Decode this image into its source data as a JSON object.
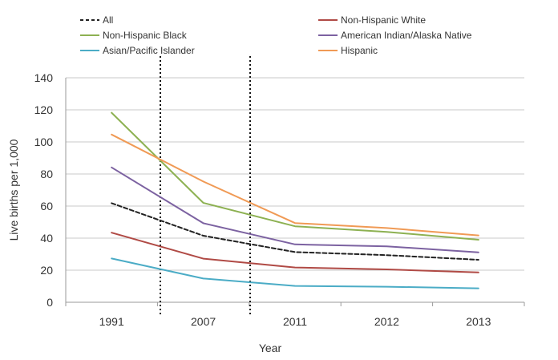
{
  "chart_data": {
    "type": "line",
    "categories": [
      "1991",
      "2007",
      "2011",
      "2012",
      "2013"
    ],
    "ylabel": "Live births per 1,000",
    "xlabel": "Year",
    "ylim": [
      0,
      140
    ],
    "yticks": [
      0,
      20,
      40,
      60,
      80,
      100,
      120,
      140
    ],
    "grid": "horizontal",
    "legend_position": "top",
    "vertical_markers": [
      "between 1991 and 2007",
      "between 2007 and 2011"
    ],
    "series": [
      {
        "name": "All",
        "values": [
          61.8,
          41.5,
          31.3,
          29.4,
          26.5
        ],
        "color": "#222222",
        "dashed": true
      },
      {
        "name": "Non-Hispanic White",
        "values": [
          43.4,
          27.2,
          21.7,
          20.5,
          18.6
        ],
        "color": "#b04a45",
        "dashed": false
      },
      {
        "name": "Non-Hispanic Black",
        "values": [
          118.2,
          62.0,
          47.4,
          43.9,
          39.0
        ],
        "color": "#8db152",
        "dashed": false
      },
      {
        "name": "American Indian/Alaska Native",
        "values": [
          84.1,
          49.3,
          36.1,
          34.9,
          31.1
        ],
        "color": "#7c62a1",
        "dashed": false
      },
      {
        "name": "Asian/Pacific Islander",
        "values": [
          27.3,
          14.8,
          10.2,
          9.7,
          8.7
        ],
        "color": "#4bacc6",
        "dashed": false
      },
      {
        "name": "Hispanic",
        "values": [
          104.6,
          75.3,
          49.4,
          46.3,
          41.7
        ],
        "color": "#f09a55",
        "dashed": false
      }
    ]
  }
}
